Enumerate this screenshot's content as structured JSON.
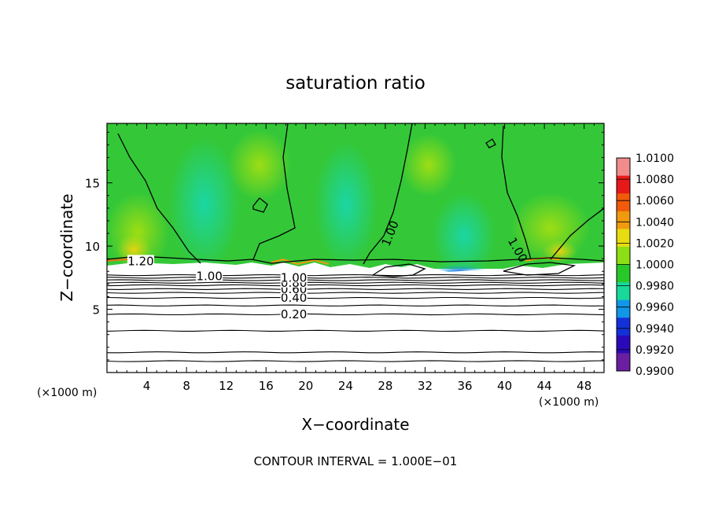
{
  "chart_data": {
    "type": "heatmap",
    "title": "saturation ratio",
    "xlabel": "X−coordinate",
    "ylabel": "Z−coordinate",
    "x_unit_left": "(×1000 m)",
    "x_unit_right": "(×1000 m)",
    "xlim": [
      0,
      50
    ],
    "ylim": [
      0,
      19.7
    ],
    "x_ticks": [
      4,
      8,
      12,
      16,
      20,
      24,
      28,
      32,
      36,
      40,
      44,
      48
    ],
    "y_ticks": [
      5,
      10,
      15
    ],
    "colorbar": {
      "range": [
        0.99,
        1.01
      ],
      "labels": [
        "1.0100",
        "1.0080",
        "1.0060",
        "1.0040",
        "1.0020",
        "1.0000",
        "0.9980",
        "0.9960",
        "0.9940",
        "0.9920",
        "0.9900"
      ],
      "colors": [
        "#f08c8c",
        "#e81818",
        "#f05a0a",
        "#f09a10",
        "#e6dc10",
        "#8ede16",
        "#28c828",
        "#18d89a",
        "#1296e8",
        "#1430d8",
        "#2a0ab8",
        "#6a1ea0"
      ]
    },
    "contour_labels": [
      {
        "text": "0.20",
        "x": 18.8,
        "z": 4.6
      },
      {
        "text": "0.40",
        "x": 18.8,
        "z": 5.9
      },
      {
        "text": "0.60",
        "x": 18.8,
        "z": 6.6
      },
      {
        "text": "0.80",
        "x": 18.8,
        "z": 7.1
      },
      {
        "text": "1.00",
        "x": 18.8,
        "z": 7.5
      },
      {
        "text": "1.00",
        "x": 10.3,
        "z": 7.6
      },
      {
        "text": "1.20",
        "x": 3.4,
        "z": 8.8
      },
      {
        "text": "1.00",
        "x": 28.5,
        "z": 11.0
      },
      {
        "text": "1.00",
        "x": 41.3,
        "z": 9.7
      }
    ],
    "stable_layer_contours_z": [
      0.9,
      1.6,
      3.3,
      4.6,
      5.3,
      5.9,
      6.3,
      6.6,
      6.9,
      7.1,
      7.3,
      7.5,
      7.7
    ],
    "cloud_base_z": 7.8,
    "annotation": "CONTOUR INTERVAL = 1.000E−01"
  }
}
